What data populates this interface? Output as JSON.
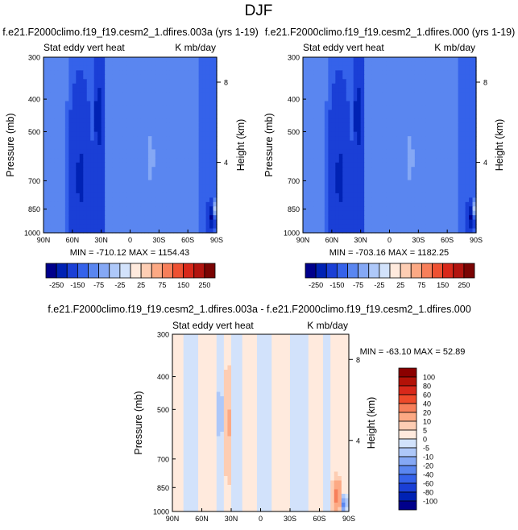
{
  "figure": {
    "title": "DJF"
  },
  "colorbar_top": {
    "levels": [
      "-250",
      "-150",
      "-75",
      "-25",
      "25",
      "75",
      "150",
      "250"
    ],
    "colors": [
      "#00008b",
      "#0022b4",
      "#1a3fd6",
      "#3562ea",
      "#5a86f0",
      "#85a8f5",
      "#aec8f9",
      "#d2e2fb",
      "#ffeadd",
      "#fdcdb3",
      "#fca984",
      "#f77f5a",
      "#ee5132",
      "#d8281a",
      "#b2140f",
      "#7a0403"
    ]
  },
  "colorbar_diff": {
    "levels": [
      "100",
      "80",
      "60",
      "40",
      "20",
      "10",
      "5",
      "0",
      "-5",
      "-10",
      "-20",
      "-40",
      "-60",
      "-80",
      "-100"
    ],
    "colors": [
      "#8b0000",
      "#b31208",
      "#d8281a",
      "#ee4a2a",
      "#f77f5a",
      "#fca984",
      "#fdcdb3",
      "#ffeadd",
      "#d2e2fb",
      "#aec8f9",
      "#85a8f5",
      "#5a86f0",
      "#3562ea",
      "#1a3fd6",
      "#0022b4",
      "#00008b"
    ]
  },
  "chart_data": [
    {
      "type": "heatmap",
      "title": "f.e21.F2000climo.f19_f19.cesm2_1.dfires.003a (yrs 1-19)",
      "left_label": "Stat eddy vert heat",
      "right_label": "K mb/day",
      "xlabel": "",
      "ylabel": "Pressure (mb)",
      "y2label": "Height (km)",
      "x_ticks": [
        "90N",
        "60N",
        "30N",
        "0",
        "30S",
        "60S",
        "90S"
      ],
      "y_ticks": [
        "300",
        "400",
        "500",
        "700",
        "850",
        "1000"
      ],
      "y2_ticks": [
        "8",
        "4"
      ],
      "xlim": [
        90,
        -90
      ],
      "ylim": [
        1000,
        300
      ],
      "y_scale": "log",
      "min_max": "MIN = -710.12   MAX = 1154.43",
      "features": [
        {
          "lat": 52,
          "p": 650,
          "wlat": 10,
          "hp": 0.55,
          "value": -95
        },
        {
          "lat": 33,
          "p": 450,
          "wlat": 3,
          "hp": 0.2,
          "value": -160
        },
        {
          "lat": -21,
          "p": 600,
          "wlat": 5,
          "hp": 0.18,
          "value": 28
        },
        {
          "lat": -84,
          "p": 900,
          "wlat": 4,
          "hp": 0.1,
          "value": -220
        },
        {
          "lat": -88,
          "p": 850,
          "wlat": 2,
          "hp": 0.06,
          "value": 180
        }
      ]
    },
    {
      "type": "heatmap",
      "title": "f.e21.F2000climo.f19_f19.cesm2_1.dfires.000 (yrs 1-19)",
      "left_label": "Stat eddy vert heat",
      "right_label": "K mb/day",
      "xlabel": "",
      "ylabel": "Pressure (mb)",
      "y2label": "Height (km)",
      "x_ticks": [
        "90N",
        "60N",
        "30N",
        "0",
        "30S",
        "60S",
        "90S"
      ],
      "y_ticks": [
        "300",
        "400",
        "500",
        "700",
        "850",
        "1000"
      ],
      "y2_ticks": [
        "8",
        "4"
      ],
      "xlim": [
        90,
        -90
      ],
      "ylim": [
        1000,
        300
      ],
      "y_scale": "log",
      "min_max": "MIN = -703.16   MAX = 1182.25",
      "features": [
        {
          "lat": 52,
          "p": 650,
          "wlat": 10,
          "hp": 0.55,
          "value": -95
        },
        {
          "lat": 33,
          "p": 450,
          "wlat": 3,
          "hp": 0.2,
          "value": -160
        },
        {
          "lat": -21,
          "p": 600,
          "wlat": 5,
          "hp": 0.18,
          "value": 28
        },
        {
          "lat": -84,
          "p": 900,
          "wlat": 4,
          "hp": 0.1,
          "value": -220
        },
        {
          "lat": -88,
          "p": 850,
          "wlat": 2,
          "hp": 0.06,
          "value": 180
        }
      ]
    },
    {
      "type": "heatmap",
      "title": "f.e21.F2000climo.f19_f19.cesm2_1.dfires.003a - f.e21.F2000climo.f19_f19.cesm2_1.dfires.000",
      "left_label": "Stat eddy vert heat",
      "right_label": "K mb/day",
      "xlabel": "",
      "ylabel": "Pressure (mb)",
      "y2label": "Height (km)",
      "x_ticks": [
        "90N",
        "60N",
        "30N",
        "0",
        "30S",
        "60S",
        "90S"
      ],
      "y_ticks": [
        "300",
        "400",
        "500",
        "700",
        "850",
        "1000"
      ],
      "y2_ticks": [
        "8",
        "4"
      ],
      "xlim": [
        90,
        -90
      ],
      "ylim": [
        1000,
        300
      ],
      "y_scale": "log",
      "min_max": "MIN = -63.10   MAX =  52.89",
      "features": [
        {
          "lat": 33,
          "p": 550,
          "wlat": 4,
          "hp": 0.3,
          "value": 7
        },
        {
          "lat": 42,
          "p": 520,
          "wlat": 4,
          "hp": 0.12,
          "value": -6
        },
        {
          "lat": -78,
          "p": 900,
          "wlat": 4,
          "hp": 0.1,
          "value": 25
        },
        {
          "lat": -85,
          "p": 950,
          "wlat": 3,
          "hp": 0.06,
          "value": -30
        }
      ]
    }
  ]
}
